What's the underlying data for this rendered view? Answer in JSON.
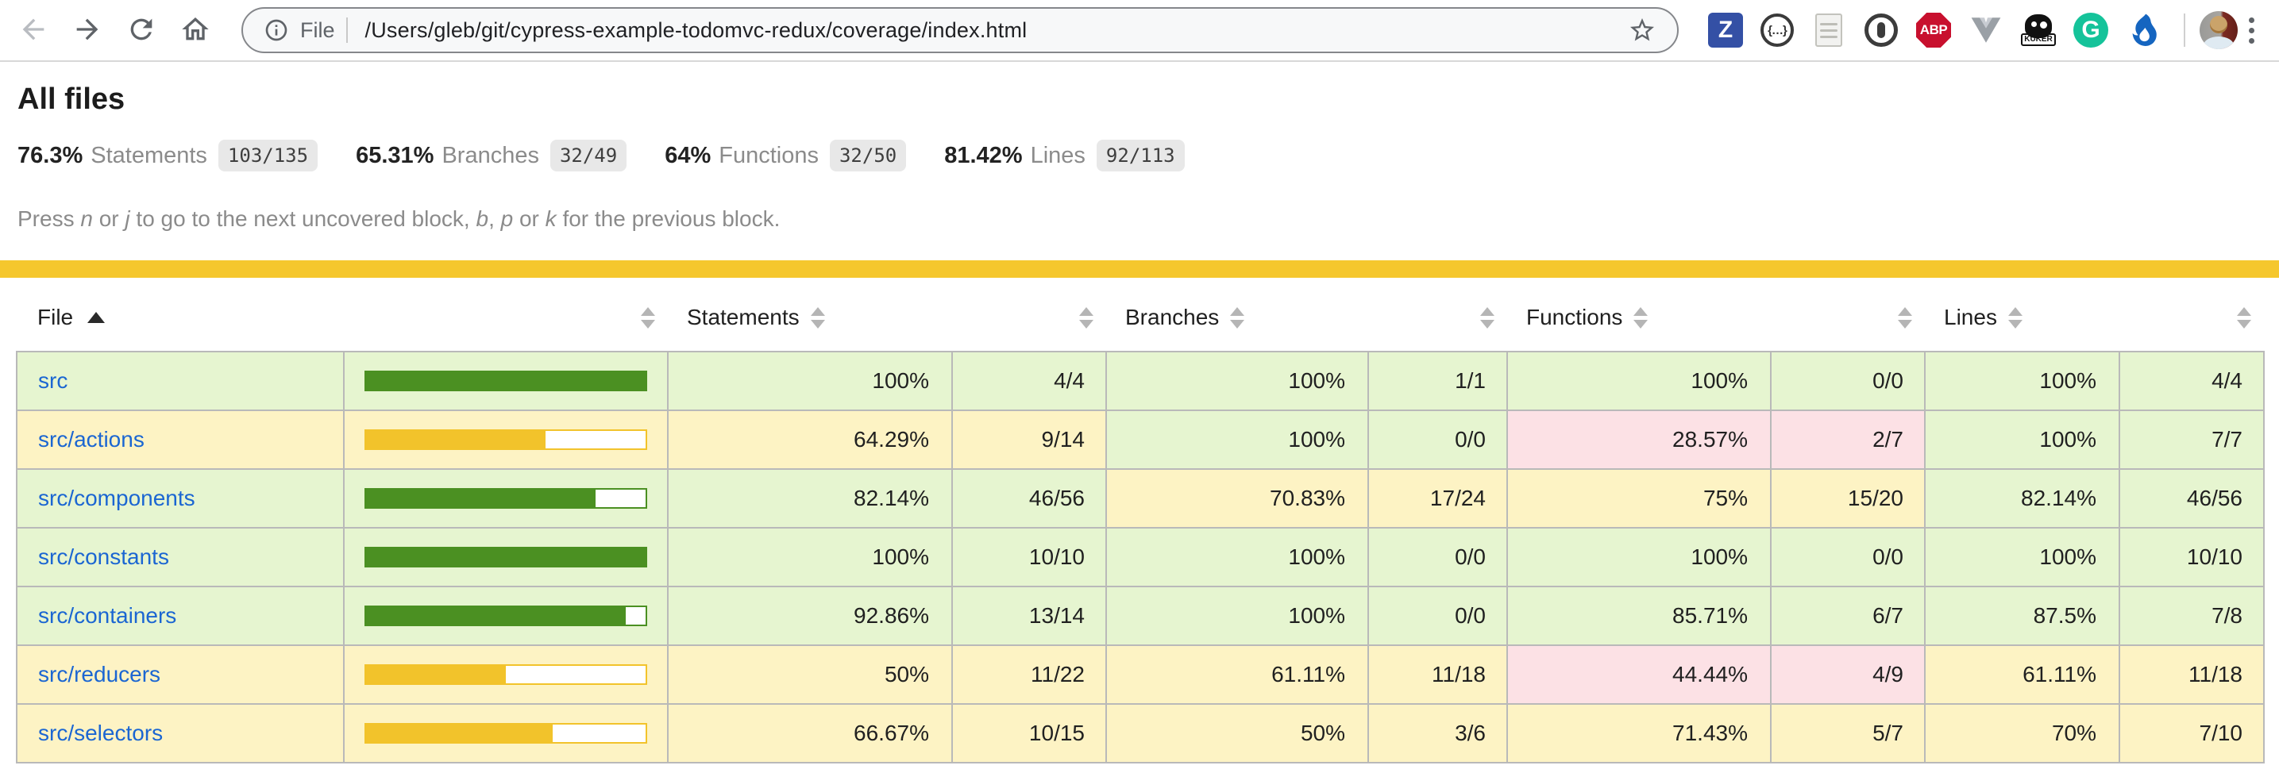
{
  "browser": {
    "omnibox": {
      "scheme_label": "File",
      "url": "/Users/gleb/git/cypress-example-todomvc-redux/coverage/index.html"
    },
    "extensions": {
      "zotero_glyph": "Z",
      "json_viewer_glyph": "{…}",
      "adblock_glyph": "ABP",
      "kuker_label": "KUKER",
      "grammarly_glyph": "G"
    }
  },
  "page": {
    "title": "All files",
    "summary": [
      {
        "pct": "76.3%",
        "label": "Statements",
        "fraction": "103/135"
      },
      {
        "pct": "65.31%",
        "label": "Branches",
        "fraction": "32/49"
      },
      {
        "pct": "64%",
        "label": "Functions",
        "fraction": "32/50"
      },
      {
        "pct": "81.42%",
        "label": "Lines",
        "fraction": "92/113"
      }
    ],
    "hint_segments": [
      {
        "t": "Press "
      },
      {
        "t": "n",
        "i": true
      },
      {
        "t": " or "
      },
      {
        "t": "j",
        "i": true
      },
      {
        "t": " to go to the next uncovered block, "
      },
      {
        "t": "b",
        "i": true
      },
      {
        "t": ", "
      },
      {
        "t": "p",
        "i": true
      },
      {
        "t": " or "
      },
      {
        "t": "k",
        "i": true
      },
      {
        "t": " for the previous block."
      }
    ]
  },
  "table": {
    "headers": [
      "File",
      "Statements",
      "Branches",
      "Functions",
      "Lines"
    ],
    "sort_column": "File",
    "sort_direction": "asc",
    "rows": [
      {
        "file": "src",
        "file_level": "high",
        "bar_pct": 100,
        "metrics": [
          {
            "pct": "100%",
            "frac": "4/4",
            "level": "high"
          },
          {
            "pct": "100%",
            "frac": "1/1",
            "level": "high"
          },
          {
            "pct": "100%",
            "frac": "0/0",
            "level": "high"
          },
          {
            "pct": "100%",
            "frac": "4/4",
            "level": "high"
          }
        ]
      },
      {
        "file": "src/actions",
        "file_level": "medium",
        "bar_pct": 64.29,
        "metrics": [
          {
            "pct": "64.29%",
            "frac": "9/14",
            "level": "medium"
          },
          {
            "pct": "100%",
            "frac": "0/0",
            "level": "high"
          },
          {
            "pct": "28.57%",
            "frac": "2/7",
            "level": "low"
          },
          {
            "pct": "100%",
            "frac": "7/7",
            "level": "high"
          }
        ]
      },
      {
        "file": "src/components",
        "file_level": "high",
        "bar_pct": 82.14,
        "metrics": [
          {
            "pct": "82.14%",
            "frac": "46/56",
            "level": "high"
          },
          {
            "pct": "70.83%",
            "frac": "17/24",
            "level": "medium"
          },
          {
            "pct": "75%",
            "frac": "15/20",
            "level": "medium"
          },
          {
            "pct": "82.14%",
            "frac": "46/56",
            "level": "high"
          }
        ]
      },
      {
        "file": "src/constants",
        "file_level": "high",
        "bar_pct": 100,
        "metrics": [
          {
            "pct": "100%",
            "frac": "10/10",
            "level": "high"
          },
          {
            "pct": "100%",
            "frac": "0/0",
            "level": "high"
          },
          {
            "pct": "100%",
            "frac": "0/0",
            "level": "high"
          },
          {
            "pct": "100%",
            "frac": "10/10",
            "level": "high"
          }
        ]
      },
      {
        "file": "src/containers",
        "file_level": "high",
        "bar_pct": 92.86,
        "metrics": [
          {
            "pct": "92.86%",
            "frac": "13/14",
            "level": "high"
          },
          {
            "pct": "100%",
            "frac": "0/0",
            "level": "high"
          },
          {
            "pct": "85.71%",
            "frac": "6/7",
            "level": "high"
          },
          {
            "pct": "87.5%",
            "frac": "7/8",
            "level": "high"
          }
        ]
      },
      {
        "file": "src/reducers",
        "file_level": "medium",
        "bar_pct": 50,
        "metrics": [
          {
            "pct": "50%",
            "frac": "11/22",
            "level": "medium"
          },
          {
            "pct": "61.11%",
            "frac": "11/18",
            "level": "medium"
          },
          {
            "pct": "44.44%",
            "frac": "4/9",
            "level": "low"
          },
          {
            "pct": "61.11%",
            "frac": "11/18",
            "level": "medium"
          }
        ]
      },
      {
        "file": "src/selectors",
        "file_level": "medium",
        "bar_pct": 66.67,
        "metrics": [
          {
            "pct": "66.67%",
            "frac": "10/15",
            "level": "medium"
          },
          {
            "pct": "50%",
            "frac": "3/6",
            "level": "medium"
          },
          {
            "pct": "71.43%",
            "frac": "5/7",
            "level": "medium"
          },
          {
            "pct": "70%",
            "frac": "7/10",
            "level": "medium"
          }
        ]
      }
    ]
  },
  "colors": {
    "high-bg": "#e6f5d0",
    "medium-bg": "#fdf3c4",
    "low-bg": "#fce1e5",
    "green-fill": "#4b9022",
    "yellow-fill": "#f2c32b",
    "status-yellow": "#f5c72d",
    "link-blue": "#1b66d2"
  }
}
